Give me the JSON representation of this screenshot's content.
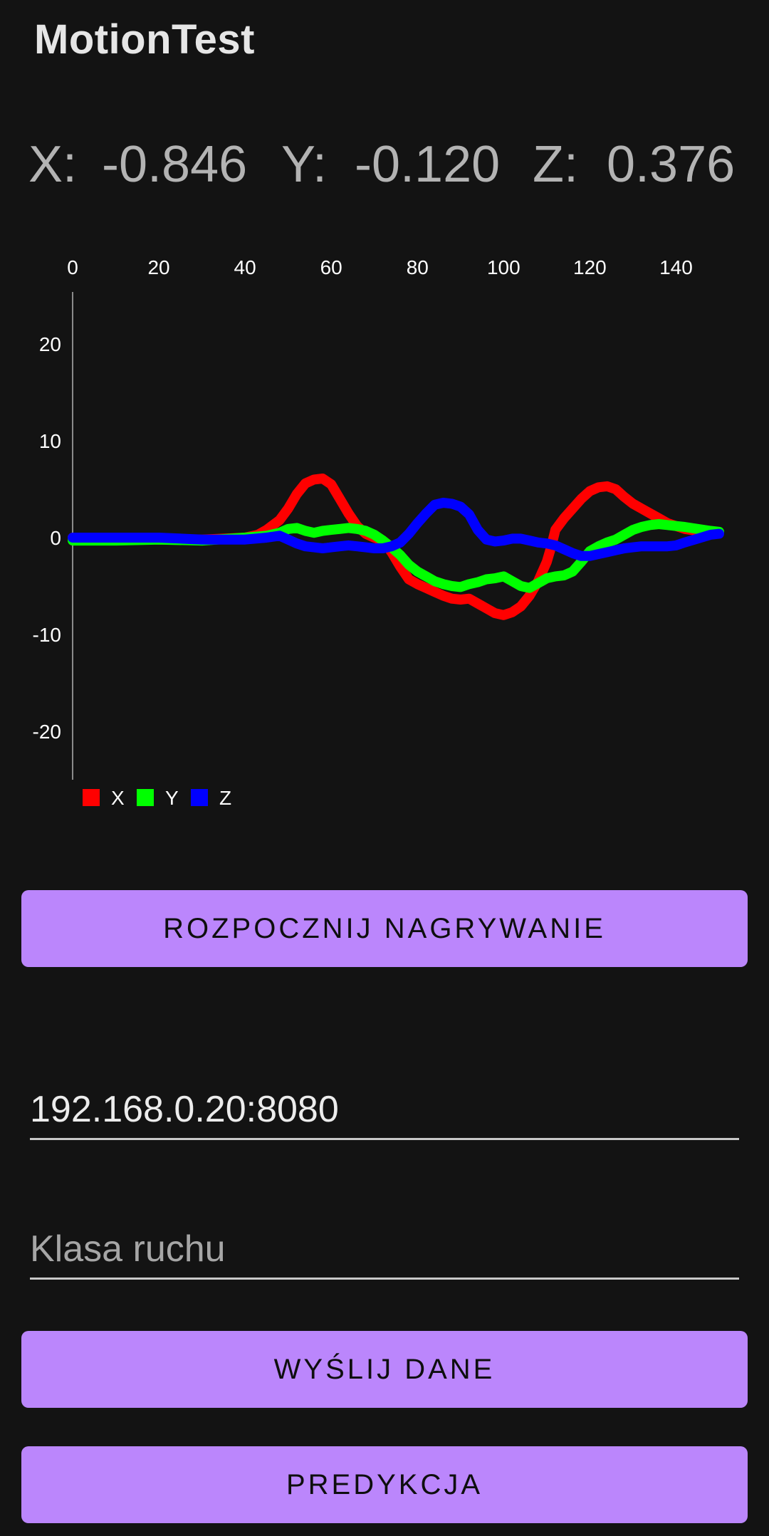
{
  "app": {
    "title": "MotionTest"
  },
  "readout": {
    "x_label": "X:",
    "x_value": "-0.846",
    "y_label": "Y:",
    "y_value": "-0.120",
    "z_label": "Z:",
    "z_value": "0.376"
  },
  "chart_data": {
    "type": "line",
    "x_ticks": [
      "0",
      "20",
      "40",
      "60",
      "80",
      "100",
      "120",
      "140"
    ],
    "y_ticks": [
      "20",
      "10",
      "0",
      "-10",
      "-20"
    ],
    "xlim": [
      0,
      150
    ],
    "ylim": [
      -25,
      25
    ],
    "x_axis_position": "top",
    "grid": false,
    "legend": "bottom-left",
    "series": [
      {
        "name": "X",
        "color": "#ff0000",
        "points": [
          [
            0,
            0
          ],
          [
            10,
            0
          ],
          [
            20,
            -0.2
          ],
          [
            30,
            -0.2
          ],
          [
            40,
            0
          ],
          [
            43,
            0.3
          ],
          [
            45,
            0.8
          ],
          [
            48,
            1.8
          ],
          [
            50,
            3
          ],
          [
            52,
            4.5
          ],
          [
            54,
            5.6
          ],
          [
            56,
            6
          ],
          [
            58,
            6.1
          ],
          [
            60,
            5.5
          ],
          [
            62,
            4
          ],
          [
            64,
            2.5
          ],
          [
            66,
            1.2
          ],
          [
            68,
            0.4
          ],
          [
            70,
            0
          ],
          [
            72,
            -0.3
          ],
          [
            74,
            -1.5
          ],
          [
            76,
            -3
          ],
          [
            78,
            -4.3
          ],
          [
            80,
            -4.8
          ],
          [
            82,
            -5.2
          ],
          [
            84,
            -5.6
          ],
          [
            86,
            -6
          ],
          [
            88,
            -6.3
          ],
          [
            90,
            -6.4
          ],
          [
            92,
            -6.3
          ],
          [
            94,
            -6.8
          ],
          [
            96,
            -7.3
          ],
          [
            98,
            -7.8
          ],
          [
            100,
            -8
          ],
          [
            102,
            -7.7
          ],
          [
            104,
            -7.1
          ],
          [
            106,
            -6
          ],
          [
            108,
            -4.5
          ],
          [
            110,
            -2.5
          ],
          [
            111,
            -1
          ],
          [
            112,
            0.8
          ],
          [
            114,
            2
          ],
          [
            116,
            3
          ],
          [
            118,
            4
          ],
          [
            120,
            4.8
          ],
          [
            122,
            5.2
          ],
          [
            124,
            5.3
          ],
          [
            126,
            5
          ],
          [
            128,
            4.2
          ],
          [
            130,
            3.5
          ],
          [
            132,
            3
          ],
          [
            134,
            2.5
          ],
          [
            136,
            2
          ],
          [
            138,
            1.5
          ],
          [
            140,
            1.2
          ],
          [
            142,
            0.9
          ],
          [
            145,
            0.7
          ],
          [
            148,
            0.6
          ],
          [
            150,
            0.5
          ]
        ]
      },
      {
        "name": "Y",
        "color": "#00ff00",
        "points": [
          [
            0,
            -0.3
          ],
          [
            10,
            -0.3
          ],
          [
            20,
            -0.2
          ],
          [
            30,
            -0.3
          ],
          [
            40,
            0
          ],
          [
            45,
            0.2
          ],
          [
            48,
            0.5
          ],
          [
            50,
            0.9
          ],
          [
            52,
            1
          ],
          [
            54,
            0.7
          ],
          [
            56,
            0.5
          ],
          [
            58,
            0.7
          ],
          [
            60,
            0.8
          ],
          [
            62,
            0.9
          ],
          [
            64,
            1
          ],
          [
            66,
            0.9
          ],
          [
            68,
            0.7
          ],
          [
            70,
            0.3
          ],
          [
            72,
            -0.3
          ],
          [
            74,
            -1
          ],
          [
            76,
            -1.8
          ],
          [
            78,
            -2.8
          ],
          [
            80,
            -3.5
          ],
          [
            82,
            -4
          ],
          [
            84,
            -4.5
          ],
          [
            86,
            -4.8
          ],
          [
            88,
            -5
          ],
          [
            90,
            -5.1
          ],
          [
            92,
            -4.8
          ],
          [
            94,
            -4.6
          ],
          [
            96,
            -4.3
          ],
          [
            98,
            -4.2
          ],
          [
            100,
            -4
          ],
          [
            102,
            -4.5
          ],
          [
            104,
            -5
          ],
          [
            106,
            -5.2
          ],
          [
            108,
            -4.7
          ],
          [
            110,
            -4.2
          ],
          [
            112,
            -4
          ],
          [
            114,
            -3.9
          ],
          [
            116,
            -3.5
          ],
          [
            118,
            -2.5
          ],
          [
            120,
            -1.4
          ],
          [
            122,
            -0.9
          ],
          [
            124,
            -0.5
          ],
          [
            126,
            -0.2
          ],
          [
            128,
            0.3
          ],
          [
            130,
            0.8
          ],
          [
            132,
            1.1
          ],
          [
            134,
            1.3
          ],
          [
            136,
            1.4
          ],
          [
            138,
            1.3
          ],
          [
            140,
            1.2
          ],
          [
            142,
            1.1
          ],
          [
            145,
            0.9
          ],
          [
            148,
            0.7
          ],
          [
            150,
            0.6
          ]
        ]
      },
      {
        "name": "Z",
        "color": "#0000ff",
        "points": [
          [
            0,
            0
          ],
          [
            10,
            0
          ],
          [
            20,
            0
          ],
          [
            30,
            -0.2
          ],
          [
            40,
            -0.2
          ],
          [
            45,
            0
          ],
          [
            48,
            0.2
          ],
          [
            50,
            -0.2
          ],
          [
            52,
            -0.6
          ],
          [
            54,
            -0.9
          ],
          [
            56,
            -1
          ],
          [
            58,
            -1.1
          ],
          [
            60,
            -1
          ],
          [
            62,
            -0.9
          ],
          [
            64,
            -0.8
          ],
          [
            66,
            -0.9
          ],
          [
            68,
            -1
          ],
          [
            70,
            -1.1
          ],
          [
            72,
            -1.1
          ],
          [
            74,
            -0.9
          ],
          [
            76,
            -0.5
          ],
          [
            78,
            0.4
          ],
          [
            80,
            1.5
          ],
          [
            82,
            2.5
          ],
          [
            84,
            3.4
          ],
          [
            86,
            3.6
          ],
          [
            88,
            3.5
          ],
          [
            90,
            3.2
          ],
          [
            92,
            2.4
          ],
          [
            94,
            0.8
          ],
          [
            96,
            -0.2
          ],
          [
            98,
            -0.4
          ],
          [
            100,
            -0.3
          ],
          [
            102,
            -0.1
          ],
          [
            104,
            -0.1
          ],
          [
            106,
            -0.3
          ],
          [
            108,
            -0.5
          ],
          [
            110,
            -0.6
          ],
          [
            112,
            -0.8
          ],
          [
            114,
            -1.2
          ],
          [
            116,
            -1.6
          ],
          [
            118,
            -1.9
          ],
          [
            120,
            -1.9
          ],
          [
            122,
            -1.7
          ],
          [
            124,
            -1.5
          ],
          [
            126,
            -1.3
          ],
          [
            128,
            -1.1
          ],
          [
            130,
            -1
          ],
          [
            132,
            -0.9
          ],
          [
            134,
            -0.9
          ],
          [
            136,
            -0.9
          ],
          [
            138,
            -0.9
          ],
          [
            140,
            -0.8
          ],
          [
            142,
            -0.5
          ],
          [
            145,
            -0.1
          ],
          [
            148,
            0.3
          ],
          [
            150,
            0.4
          ]
        ]
      }
    ]
  },
  "buttons": {
    "record": "ROZPOCZNIJ NAGRYWANIE",
    "send": "WYŚLIJ DANE",
    "predict": "PREDYKCJA"
  },
  "fields": {
    "server_value": "192.168.0.20:8080",
    "class_placeholder": "Klasa ruchu"
  }
}
